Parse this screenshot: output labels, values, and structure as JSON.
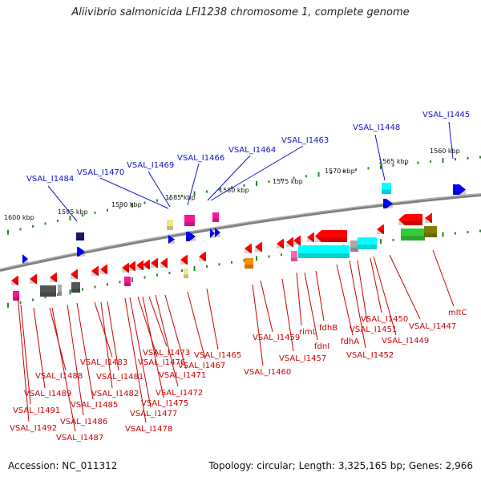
{
  "title": "Aliivibrio salmonicida LFI1238 chromosome 1, complete genome",
  "footer": {
    "accession_label": "Accession:",
    "accession": "NC_011312",
    "topology_label": "Topology:",
    "topology": "circular",
    "length_label": "Length:",
    "length": "3,325,165 bp",
    "genes_label": "Genes:",
    "genes": "2,966"
  },
  "scale_labels": [
    "1600 kbp",
    "1595 kbp",
    "1590 kbp",
    "1585 kbp",
    "1580 kbp",
    "1575 kbp",
    "1570 kbp",
    "1565 kbp",
    "1560 kbp"
  ],
  "colors": {
    "forward_label": "#1111cc",
    "reverse_label": "#cc0000",
    "backbone": "#808080",
    "tick": "#228822"
  },
  "forward_labels": [
    "VSAL_I1484",
    "VSAL_I1470",
    "VSAL_I1469",
    "VSAL_I1466",
    "VSAL_I1464",
    "VSAL_I1463",
    "VSAL_I1448",
    "VSAL_I1445"
  ],
  "reverse_labels": [
    "VSAL_I1492",
    "VSAL_I1491",
    "VSAL_I1489",
    "VSAL_I1488",
    "VSAL_I1487",
    "VSAL_I1486",
    "VSAL_I1485",
    "VSAL_I1483",
    "VSAL_I1482",
    "VSAL_I1481",
    "VSAL_I1478",
    "VSAL_I1477",
    "VSAL_I1476",
    "VSAL_I1475",
    "VSAL_I1473",
    "VSAL_I1472",
    "VSAL_I1471",
    "VSAL_I1467",
    "VSAL_I1465",
    "VSAL_I1460",
    "VSAL_I1459",
    "VSAL_I1457",
    "rimL",
    "fdnI",
    "fdhB",
    "fdhA",
    "VSAL_I1452",
    "VSAL_I1451",
    "VSAL_I1450",
    "VSAL_I1449",
    "VSAL_I1447",
    "mltC"
  ],
  "feature_colors": [
    "#ff0000",
    "#0000ff",
    "#00ffff",
    "#ff1493",
    "#ff8c00",
    "#33cc33",
    "#808000",
    "#808080",
    "#a9a9a9",
    "#191970",
    "#f0e68c",
    "#ff69b4"
  ]
}
